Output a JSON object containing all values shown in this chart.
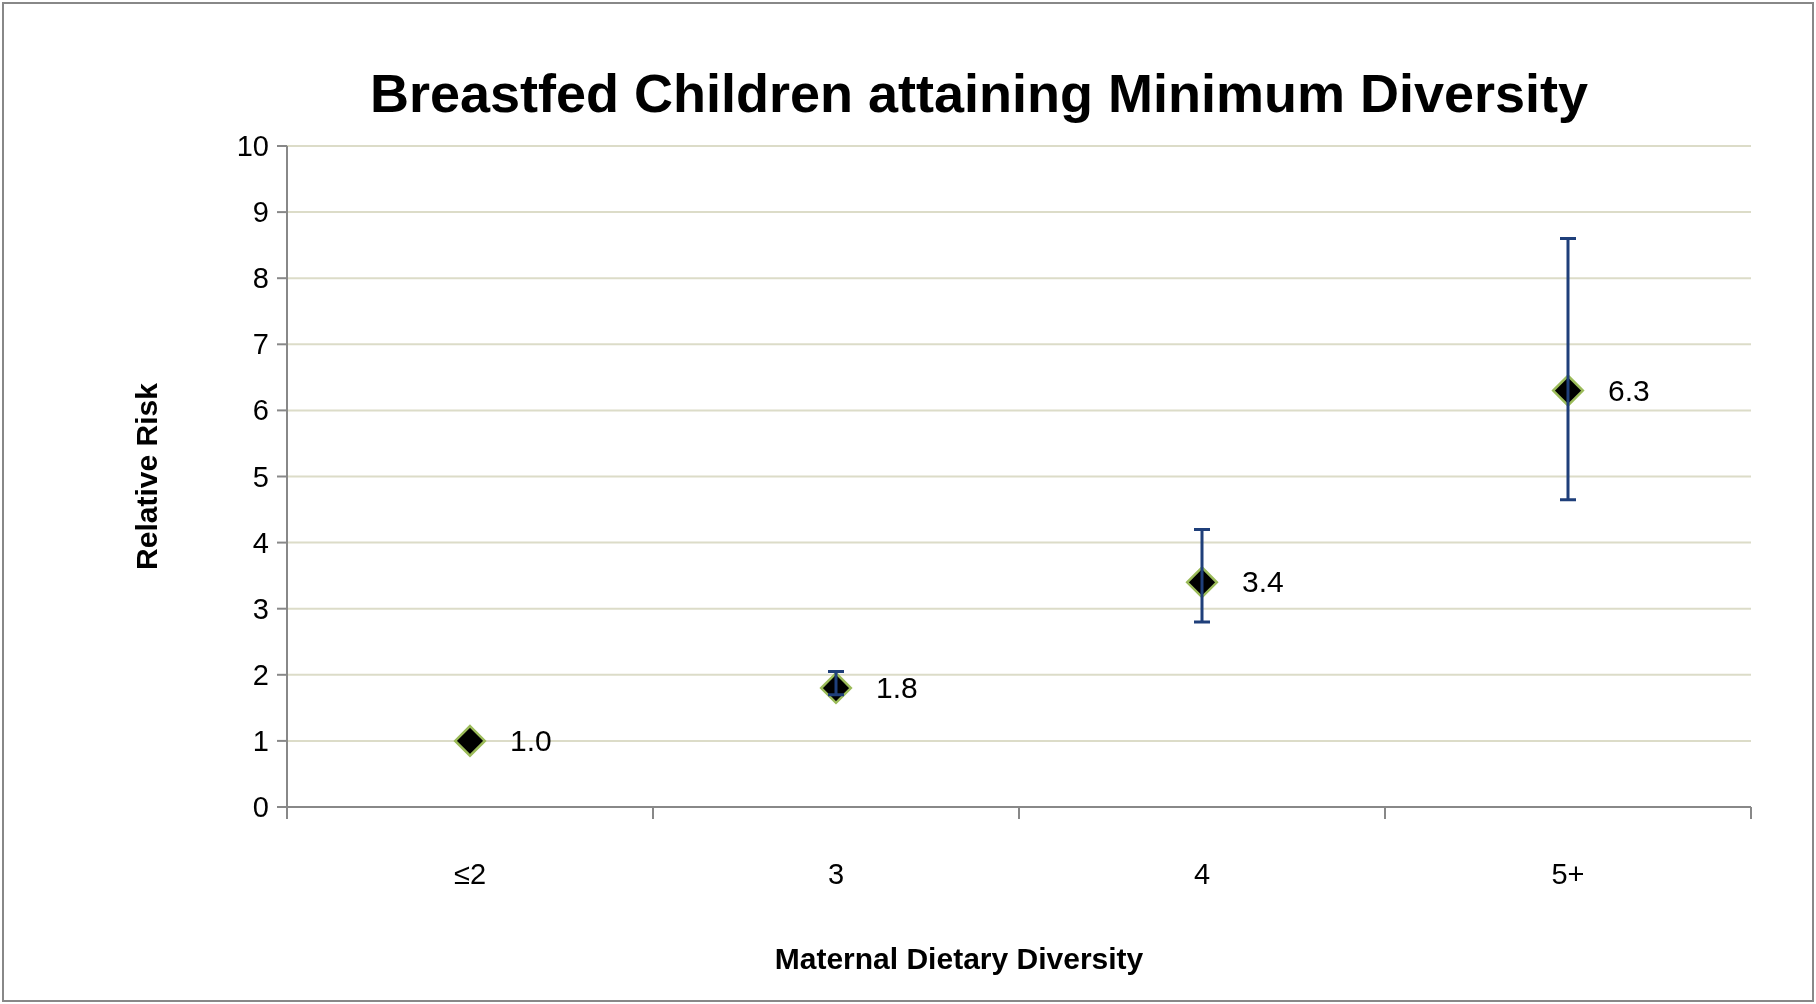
{
  "chart_data": {
    "type": "scatter",
    "title": "Breastfed Children attaining Minimum Diversity",
    "xlabel": "Maternal Dietary Diversity",
    "ylabel": "Relative Risk",
    "categories": [
      "≤2",
      "3",
      "4",
      "5+"
    ],
    "series": [
      {
        "color": "#000000",
        "values": [
          1.0,
          1.8,
          3.4,
          6.3
        ],
        "value_labels": [
          "1.0",
          "1.8",
          "3.4",
          "6.3"
        ],
        "errors": [
          null,
          [
            1.7,
            2.05
          ],
          [
            2.8,
            4.2
          ],
          [
            4.65,
            8.6
          ]
        ]
      }
    ],
    "ylim": [
      0,
      10
    ],
    "yticks": [
      0,
      1,
      2,
      3,
      4,
      5,
      6,
      7,
      8,
      9,
      10
    ],
    "grid": "y",
    "marker": "diamond"
  }
}
